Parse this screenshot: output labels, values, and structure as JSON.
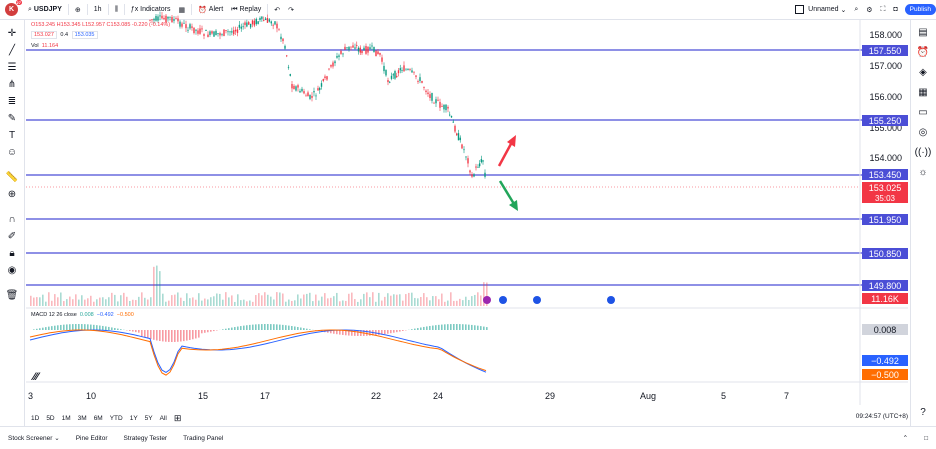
{
  "topbar": {
    "avatar_letter": "K",
    "avatar_badge": "27",
    "symbol": "USDJPY",
    "interval": "1h",
    "indicators": "Indicators",
    "alert": "Alert",
    "replay": "Replay",
    "layout_name": "Unnamed",
    "publish": "Publish"
  },
  "legend": {
    "ohlc": "O153.245  H153.345  L152.957  C153.085  -0.220 (-0.14%)",
    "sell": "153.027",
    "spread": "0.4",
    "buy": "153.035",
    "vol_label": "Vol",
    "vol_value": "11.164"
  },
  "price_scale": {
    "labels": [
      "158.000",
      "157.000",
      "156.000",
      "155.000",
      "154.000",
      "153.000",
      "152.000",
      "151.000",
      "150.000"
    ],
    "badges": [
      {
        "value": "157.550",
        "color": "#4b4ed6"
      },
      {
        "value": "155.250",
        "color": "#4b4ed6"
      },
      {
        "value": "153.450",
        "color": "#4b4ed6"
      },
      {
        "value": "151.950",
        "color": "#4b4ed6"
      },
      {
        "value": "150.850",
        "color": "#4b4ed6"
      },
      {
        "value": "149.800",
        "color": "#4b4ed6"
      }
    ],
    "current_price": "153.025",
    "countdown": "35:03",
    "volume_badge": "11.16K",
    "macd_badges": [
      {
        "value": "0.008",
        "color": "#d1d4dc",
        "text": "#131722"
      },
      {
        "value": "−0.492",
        "color": "#2962ff",
        "text": "#ffffff"
      },
      {
        "value": "−0.500",
        "color": "#ff6d00",
        "text": "#ffffff"
      }
    ]
  },
  "macd_legend": {
    "name": "MACD 12 26 close",
    "v1": "0.008",
    "v2": "−0.492",
    "v3": "−0.500"
  },
  "x_axis": [
    "3",
    "10",
    "15",
    "17",
    "22",
    "24",
    "29",
    "Aug",
    "5",
    "7"
  ],
  "timeframes": [
    "1D",
    "5D",
    "1M",
    "3M",
    "6M",
    "YTD",
    "1Y",
    "5Y",
    "All"
  ],
  "clock": "09:24:57 (UTC+8)",
  "bottom_tabs": [
    "Stock Screener",
    "Pine Editor",
    "Strategy Tester",
    "Trading Panel"
  ],
  "colors": {
    "level_line": "#4b4ed6",
    "up": "#089981",
    "down": "#f23645",
    "arrow_up": "#f23645",
    "arrow_down": "#22a55a"
  }
}
